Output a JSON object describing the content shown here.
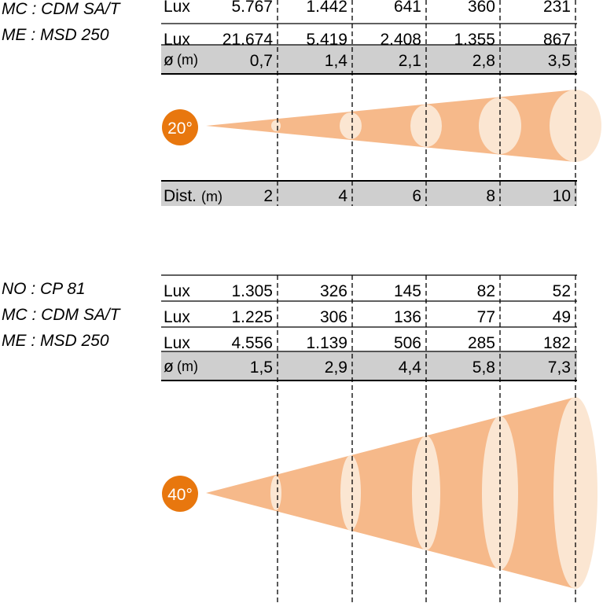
{
  "colors": {
    "beam": "#f6b98a",
    "ellipse": "#fbe6d2",
    "badge": "#e8770e",
    "band": "#cfcfcf"
  },
  "sections": [
    {
      "angle_label": "20°",
      "lamps": [
        "MC : CDM SA/T",
        "ME : MSD 250"
      ],
      "lux_label": "Lux",
      "lux_rows": [
        [
          "5.767",
          "1.442",
          "641",
          "360",
          "231"
        ],
        [
          "21.674",
          "5.419",
          "2.408",
          "1.355",
          "867"
        ]
      ],
      "diam_label": "ø",
      "diam_unit": "(m)",
      "diameters": [
        "0,7",
        "1,4",
        "2,1",
        "2,8",
        "3,5"
      ],
      "dist_label": "Dist.",
      "dist_unit": "(m)",
      "distances": [
        "2",
        "4",
        "6",
        "8",
        "10"
      ]
    },
    {
      "angle_label": "40°",
      "lamps": [
        "NO : CP 81",
        "MC : CDM SA/T",
        "ME : MSD 250"
      ],
      "lux_label": "Lux",
      "lux_rows": [
        [
          "1.305",
          "326",
          "145",
          "82",
          "52"
        ],
        [
          "1.225",
          "306",
          "136",
          "77",
          "49"
        ],
        [
          "4.556",
          "1.139",
          "506",
          "285",
          "182"
        ]
      ],
      "diam_label": "ø",
      "diam_unit": "(m)",
      "diameters": [
        "1,5",
        "2,9",
        "4,4",
        "5,8",
        "7,3"
      ]
    }
  ]
}
